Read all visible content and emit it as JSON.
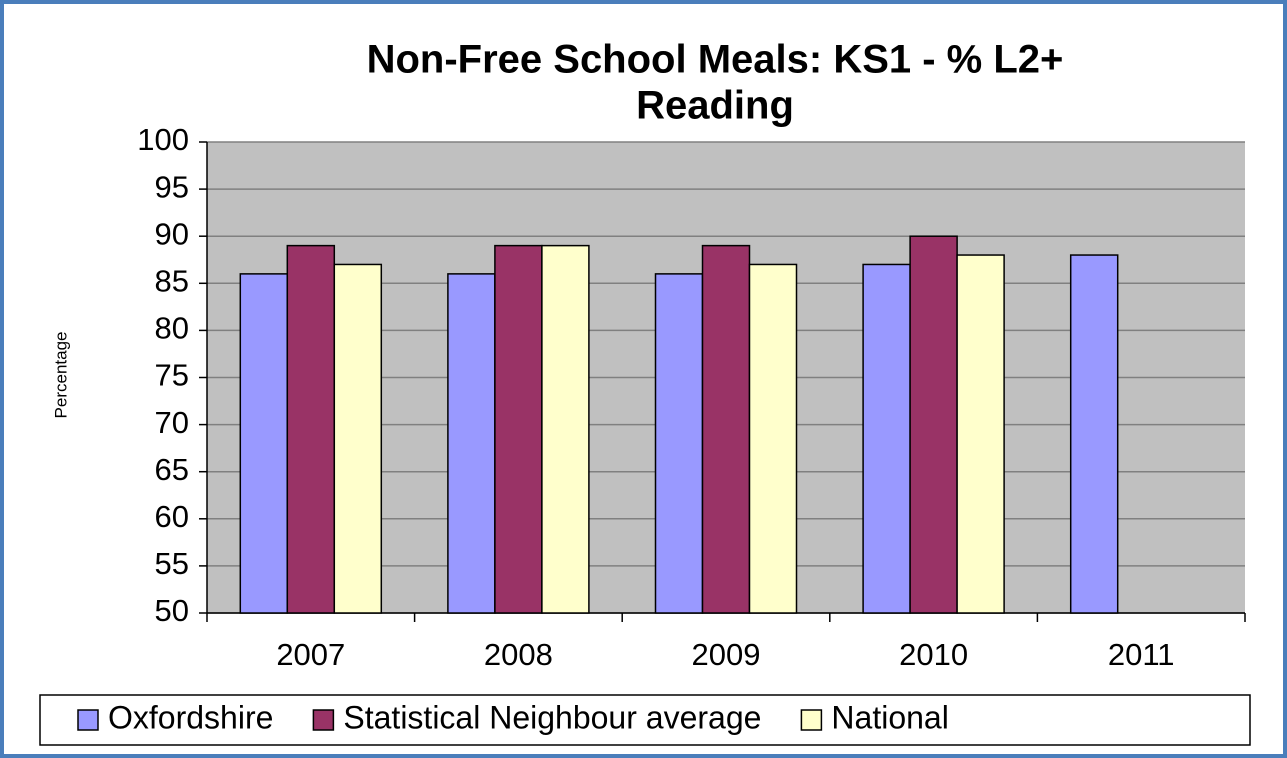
{
  "chart_data": {
    "type": "bar",
    "title": [
      "Non-Free School Meals: KS1 - % L2+",
      "Reading"
    ],
    "y_label": "Percentage",
    "categories": [
      "2007",
      "2008",
      "2009",
      "2010",
      "2011"
    ],
    "series": [
      {
        "name": "Oxfordshire",
        "color": "#9999ff",
        "values": [
          86,
          86,
          86,
          87,
          88
        ]
      },
      {
        "name": "Statistical Neighbour average",
        "color": "#993366",
        "values": [
          89,
          89,
          89,
          90,
          null
        ]
      },
      {
        "name": "National",
        "color": "#ffffcc",
        "values": [
          87,
          89,
          87,
          88,
          null
        ]
      }
    ],
    "ylim": [
      50,
      100
    ],
    "yticks": [
      50,
      55,
      60,
      65,
      70,
      75,
      80,
      85,
      90,
      95,
      100
    ],
    "grid": true,
    "legend": "bottom"
  }
}
